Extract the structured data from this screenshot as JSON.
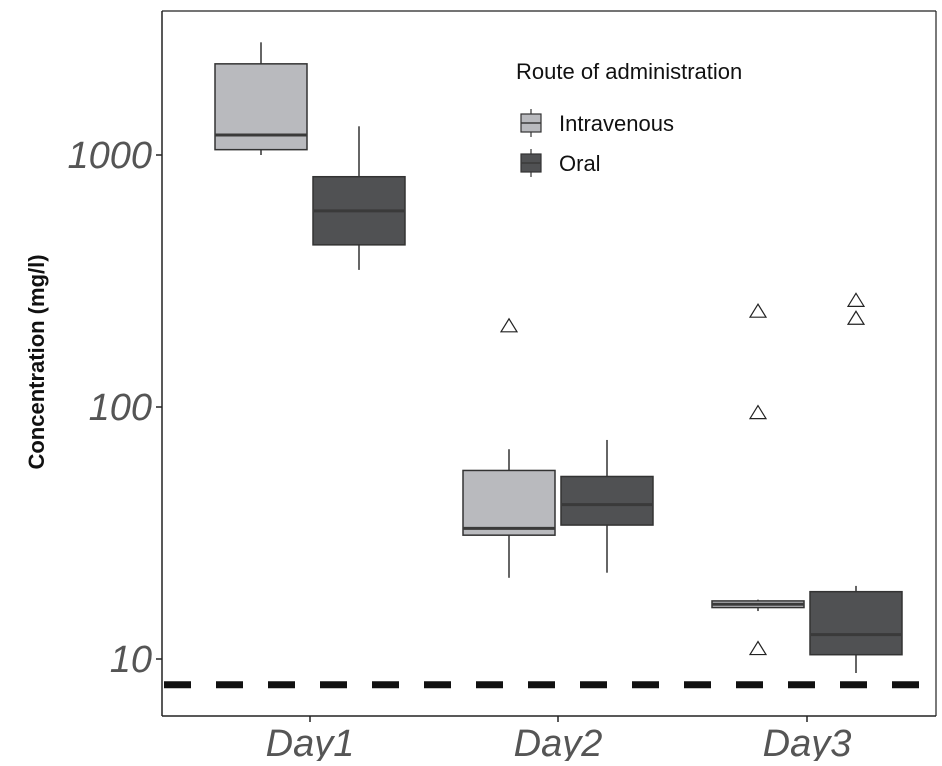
{
  "chart_data": {
    "type": "box",
    "ylabel": "Concentration (mg/l)",
    "xlabel": "",
    "yscale": "log",
    "ylim": [
      6.2,
      3300
    ],
    "yticks": [
      10,
      100,
      1000
    ],
    "ytick_labels": [
      "10",
      "100",
      "1000"
    ],
    "categories": [
      "Day1",
      "Day2",
      "Day3"
    ],
    "legend": {
      "title": "Route of administration",
      "placement": "top-right",
      "entries": [
        "Intravenous",
        "Oral"
      ]
    },
    "series": [
      {
        "name": "Intravenous",
        "color": "#b9babe",
        "boxes": [
          {
            "category": "Day1",
            "whisker_low": 1000,
            "q1": 1050,
            "median": 1200,
            "q3": 2300,
            "whisker_high": 2800,
            "outliers": []
          },
          {
            "category": "Day2",
            "whisker_low": 21,
            "q1": 31,
            "median": 33,
            "q3": 56,
            "whisker_high": 68,
            "outliers": [
              210
            ]
          },
          {
            "category": "Day3",
            "whisker_low": 15.5,
            "q1": 16,
            "median": 16.5,
            "q3": 17,
            "whisker_high": 17.2,
            "outliers": [
              240,
              95,
              11
            ]
          }
        ]
      },
      {
        "name": "Oral",
        "color": "#505153",
        "boxes": [
          {
            "category": "Day1",
            "whisker_low": 350,
            "q1": 440,
            "median": 600,
            "q3": 820,
            "whisker_high": 1300,
            "outliers": []
          },
          {
            "category": "Day2",
            "whisker_low": 22,
            "q1": 34,
            "median": 41,
            "q3": 53,
            "whisker_high": 74,
            "outliers": []
          },
          {
            "category": "Day3",
            "whisker_low": 8.8,
            "q1": 10.4,
            "median": 12.5,
            "q3": 18.5,
            "whisker_high": 19.5,
            "outliers": [
              265,
              225
            ]
          }
        ]
      }
    ],
    "reference_line": {
      "value": 7.9,
      "style": "dashed",
      "color": "#111111"
    }
  }
}
